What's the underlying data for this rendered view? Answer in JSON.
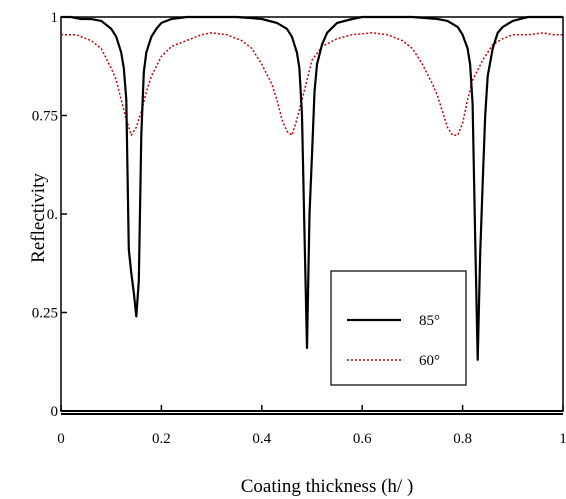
{
  "chart_data": {
    "type": "line",
    "title": "",
    "xlabel": "Coating thickness (h/  )",
    "ylabel": "Reflectivity",
    "xlim": [
      0,
      1
    ],
    "ylim": [
      0,
      1
    ],
    "x_ticks": [
      0,
      0.2,
      0.4,
      0.6,
      0.8,
      1
    ],
    "x_tick_labels": [
      "0",
      "0.2",
      "0.4",
      "0.6",
      "0.8",
      "1"
    ],
    "y_ticks": [
      0,
      0.25,
      0.5,
      0.75,
      1
    ],
    "y_tick_labels": [
      "0",
      "0.25",
      "0.",
      "0.75",
      "1"
    ],
    "grid": false,
    "legend_position": "bottom-right",
    "series": [
      {
        "name": "85°",
        "color": "#000000",
        "style": "solid",
        "x": [
          0.0,
          0.02,
          0.04,
          0.06,
          0.08,
          0.1,
          0.11,
          0.12,
          0.125,
          0.13,
          0.135,
          0.14,
          0.145,
          0.15,
          0.155,
          0.16,
          0.165,
          0.17,
          0.18,
          0.19,
          0.2,
          0.22,
          0.25,
          0.3,
          0.35,
          0.4,
          0.43,
          0.45,
          0.46,
          0.47,
          0.475,
          0.48,
          0.485,
          0.49,
          0.495,
          0.5,
          0.505,
          0.51,
          0.52,
          0.53,
          0.55,
          0.58,
          0.6,
          0.65,
          0.7,
          0.75,
          0.77,
          0.79,
          0.8,
          0.81,
          0.815,
          0.82,
          0.825,
          0.83,
          0.835,
          0.84,
          0.845,
          0.85,
          0.86,
          0.87,
          0.88,
          0.9,
          0.93,
          0.96,
          1.0
        ],
        "y": [
          1.0,
          1.0,
          0.995,
          0.995,
          0.99,
          0.97,
          0.95,
          0.91,
          0.87,
          0.79,
          0.41,
          0.35,
          0.3,
          0.24,
          0.33,
          0.7,
          0.86,
          0.91,
          0.95,
          0.97,
          0.985,
          0.995,
          1.0,
          1.0,
          1.0,
          0.995,
          0.985,
          0.97,
          0.95,
          0.91,
          0.87,
          0.75,
          0.45,
          0.16,
          0.5,
          0.65,
          0.81,
          0.88,
          0.93,
          0.96,
          0.985,
          0.995,
          1.0,
          1.0,
          1.0,
          0.995,
          0.99,
          0.975,
          0.955,
          0.92,
          0.88,
          0.78,
          0.45,
          0.13,
          0.4,
          0.58,
          0.75,
          0.85,
          0.92,
          0.96,
          0.975,
          0.99,
          1.0,
          1.0,
          1.0
        ]
      },
      {
        "name": "60°",
        "color": "#cc0000",
        "style": "dotted",
        "x": [
          0.0,
          0.03,
          0.06,
          0.08,
          0.1,
          0.11,
          0.12,
          0.13,
          0.14,
          0.15,
          0.16,
          0.17,
          0.18,
          0.2,
          0.22,
          0.25,
          0.28,
          0.3,
          0.33,
          0.36,
          0.38,
          0.4,
          0.42,
          0.43,
          0.44,
          0.45,
          0.46,
          0.47,
          0.48,
          0.49,
          0.5,
          0.52,
          0.55,
          0.58,
          0.62,
          0.65,
          0.68,
          0.7,
          0.72,
          0.74,
          0.75,
          0.76,
          0.77,
          0.78,
          0.79,
          0.8,
          0.81,
          0.82,
          0.84,
          0.86,
          0.88,
          0.9,
          0.93,
          0.96,
          0.98,
          1.0
        ],
        "y": [
          0.955,
          0.955,
          0.94,
          0.92,
          0.87,
          0.84,
          0.79,
          0.74,
          0.7,
          0.72,
          0.76,
          0.81,
          0.85,
          0.9,
          0.925,
          0.94,
          0.955,
          0.96,
          0.955,
          0.94,
          0.92,
          0.88,
          0.83,
          0.79,
          0.74,
          0.71,
          0.7,
          0.74,
          0.79,
          0.84,
          0.89,
          0.925,
          0.945,
          0.955,
          0.96,
          0.955,
          0.94,
          0.92,
          0.88,
          0.83,
          0.8,
          0.76,
          0.72,
          0.7,
          0.7,
          0.73,
          0.79,
          0.84,
          0.89,
          0.93,
          0.945,
          0.955,
          0.955,
          0.96,
          0.955,
          0.955
        ]
      }
    ]
  }
}
